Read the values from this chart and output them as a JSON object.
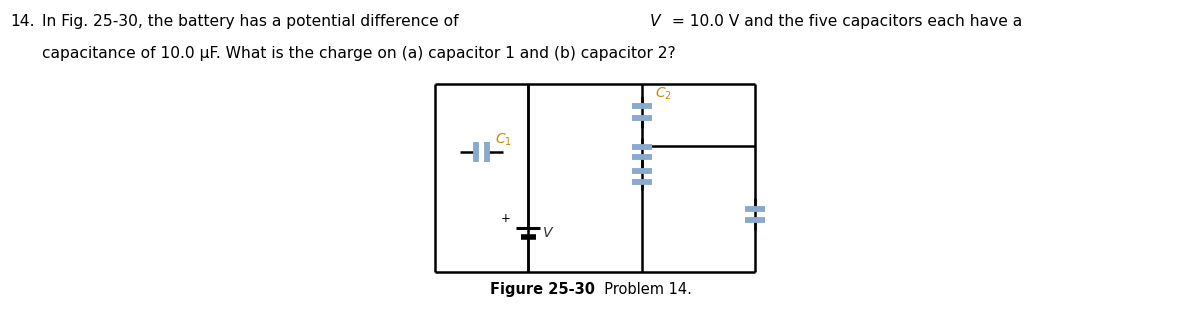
{
  "line1_num": "14.",
  "line1_text": " In Fig. 25-30, the battery has a potential difference of  ",
  "line1_italic": "V",
  "line1_rest": " = 10.0 V and the five capacitors each have a",
  "line2": "capacitance of 10.0 μF. What is the charge on (a) capacitor 1 and (b) capacitor 2?",
  "caption_bold": "Figure 25-30",
  "caption_normal": "  Problem 14.",
  "cap_color": "#88aacc",
  "wire_color": "#000000",
  "label_C_color": "#cc8800",
  "label_V_color": "#333333",
  "bg_color": "#ffffff"
}
